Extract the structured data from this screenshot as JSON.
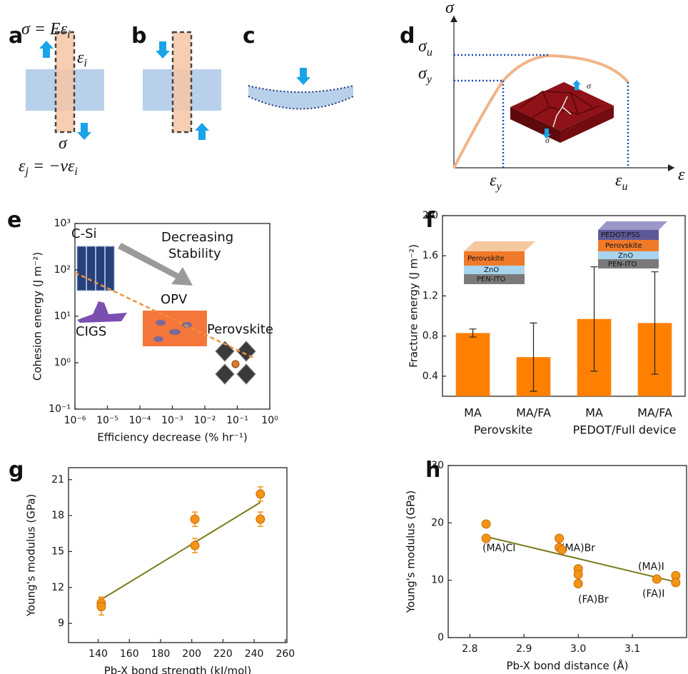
{
  "panels": {
    "a": {
      "letter": "a",
      "equation_top": [
        "σ = Eε",
        "i"
      ],
      "strain": [
        "ε",
        "i"
      ],
      "stress": "σ",
      "equation_bottom": [
        "ε",
        "j",
        " = −νε",
        "i"
      ]
    },
    "b": {
      "letter": "b"
    },
    "c": {
      "letter": "c"
    },
    "d": {
      "letter": "d",
      "y_axis": "σ",
      "x_axis": "ε",
      "y_marks": [
        [
          "σ",
          "u"
        ],
        [
          "σ",
          "y"
        ]
      ],
      "x_marks": [
        [
          "ε",
          "y"
        ],
        [
          "ε",
          "u"
        ]
      ],
      "inset_stress": [
        "σ",
        "σ"
      ]
    },
    "e": {
      "letter": "e"
    },
    "f": {
      "letter": "f"
    },
    "g": {
      "letter": "g"
    },
    "h": {
      "letter": "h"
    }
  },
  "chart_data": [
    {
      "type": "line",
      "x_label": "Efficiency decrease (% hr⁻¹)",
      "y_label": "Cohesion energy (J m⁻²)",
      "log_x": true,
      "log_y": true,
      "xlim": [
        1e-06,
        1
      ],
      "ylim": [
        0.1,
        1000
      ],
      "xticks": [
        {
          "value": 1e-06,
          "label": "10⁻⁶"
        },
        {
          "value": 1e-05,
          "label": "10⁻⁵"
        },
        {
          "value": 0.0001,
          "label": "10⁻⁴"
        },
        {
          "value": 0.001,
          "label": "10⁻³"
        },
        {
          "value": 0.01,
          "label": "10⁻²"
        },
        {
          "value": 0.1,
          "label": "10⁻¹"
        },
        {
          "value": 1,
          "label": "10⁰"
        }
      ],
      "yticks": [
        {
          "value": 0.1,
          "label": "10⁻¹"
        },
        {
          "value": 1,
          "label": "10⁰"
        },
        {
          "value": 10,
          "label": "10¹"
        },
        {
          "value": 100,
          "label": "10²"
        },
        {
          "value": 1000,
          "label": "10³"
        }
      ],
      "x": [
        1e-06,
        0.3
      ],
      "series": [
        {
          "color": "#f0903c",
          "dashed": true,
          "values": [
            87,
            1.3
          ]
        }
      ],
      "annotations": [
        "C-Si",
        "CIGS",
        "OPV",
        "Perovskite",
        "Decreasing",
        "Stability"
      ]
    },
    {
      "type": "bar",
      "y_label": "Fracture energy (J m⁻²)",
      "categories": [
        "MA",
        "MA/FA",
        "MA",
        "MA/FA"
      ],
      "groups": [
        "Perovskite",
        "PEDOT/Full device"
      ],
      "values": [
        0.83,
        0.59,
        0.97,
        0.93
      ],
      "errors": [
        0.04,
        0.34,
        0.52,
        0.51
      ],
      "color": "#ff8000",
      "ylim": [
        0.2,
        2.0
      ],
      "yticks": [
        0.4,
        0.8,
        1.2,
        1.6,
        {
          "value": 2,
          "label": "2.0"
        }
      ],
      "insets": [
        [
          "Perovskite",
          "ZnO",
          "PEN-ITO"
        ],
        [
          "PEDOT:PSS",
          "Perovskite",
          "ZnO",
          "PEN-ITO"
        ]
      ]
    },
    {
      "type": "scatter",
      "x_label": "Pb-X bond strength (kJ/mol)",
      "y_label": "Young's modulus (GPa)",
      "xlim": [
        121,
        261
      ],
      "ylim": [
        7.4,
        22
      ],
      "xticks": [
        140,
        160,
        180,
        200,
        220,
        240,
        260
      ],
      "yticks": [
        9,
        12,
        15,
        18,
        21
      ],
      "x": [
        142,
        142,
        202,
        202,
        244,
        244
      ],
      "values": [
        10.7,
        10.4,
        17.7,
        15.5,
        19.8,
        17.7
      ],
      "errors": [
        0.5,
        0.7,
        0.6,
        0.6,
        0.6,
        0.6
      ],
      "color": "#f39317",
      "fit": {
        "x": [
          142,
          244
        ],
        "values": [
          11.0,
          19.1
        ],
        "color": "#7a7a1a"
      }
    },
    {
      "type": "scatter",
      "x_label": "Pb-X bond distance (Å)",
      "y_label": "Young's modulus (GPa)",
      "xlim": [
        2.76,
        3.2
      ],
      "ylim": [
        0,
        30
      ],
      "xticks": [
        2.8,
        2.9,
        {
          "value": 3,
          "label": "3.0"
        },
        3.1
      ],
      "yticks": [
        0,
        10,
        20,
        30
      ],
      "x": [
        2.83,
        2.83,
        2.965,
        2.965,
        2.97,
        3.0,
        3.0,
        3.0,
        3.145,
        3.18,
        3.18
      ],
      "values": [
        19.8,
        17.3,
        17.3,
        15.7,
        15.3,
        12.0,
        11.0,
        9.4,
        10.2,
        10.8,
        9.6
      ],
      "color": "#f39317",
      "fit": {
        "x": [
          2.83,
          3.18
        ],
        "values": [
          17.6,
          9.7
        ],
        "color": "#7a7a1a"
      },
      "annotations": [
        "(MA)Cl",
        "(MA)Br",
        "(FA)Br",
        "(MA)I",
        "(FA)I"
      ]
    }
  ]
}
